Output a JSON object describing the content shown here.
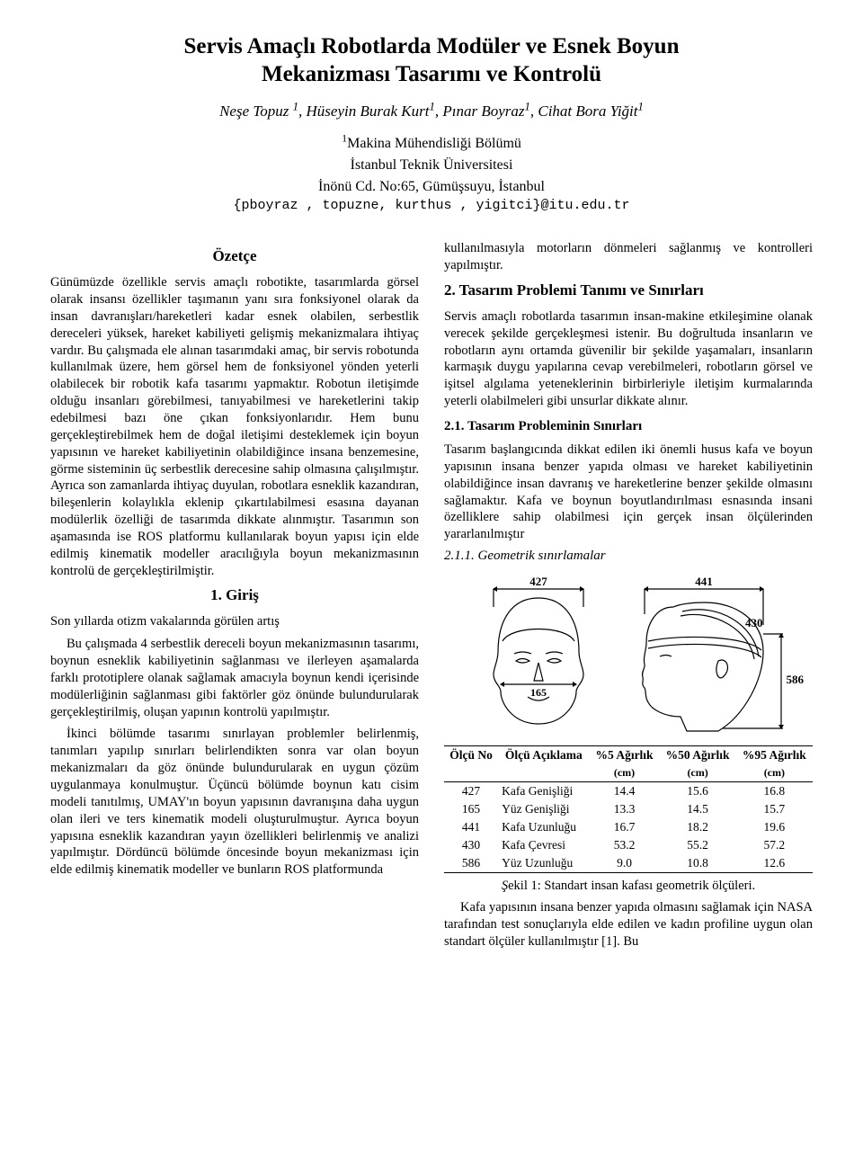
{
  "title_line1": "Servis Amaçlı Robotlarda Modüler ve Esnek Boyun",
  "title_line2": "Mekanizması Tasarımı ve Kontrolü",
  "authors_html": "Neşe Topuz <sup>1</sup>, Hüseyin Burak Kurt<sup>1</sup>, Pınar Boyraz<sup>1</sup>, Cihat Bora Yiğit<sup>1</sup>",
  "affil_line1_html": "<sup>1</sup>Makina Mühendisliği Bölümü",
  "affil_line2": "İstanbul Teknik Üniversitesi",
  "affil_line3": "İnönü Cd. No:65, Gümüşsuyu, İstanbul",
  "email": "{pboyraz , topuzne, kurthus , yigitci}@itu.edu.tr",
  "ozetce_head": "Özetçe",
  "ozetce_body": "Günümüzde özellikle servis amaçlı robotikte, tasarımlarda görsel olarak insansı özellikler taşımanın yanı sıra fonksiyonel olarak da insan davranışları/hareketleri kadar esnek olabilen, serbestlik dereceleri yüksek, hareket kabiliyeti gelişmiş mekanizmalara ihtiyaç vardır. Bu çalışmada ele alınan tasarımdaki amaç, bir servis robotunda kullanılmak üzere, hem görsel hem de fonksiyonel yönden yeterli olabilecek bir robotik kafa tasarımı yapmaktır. Robotun iletişimde olduğu insanları görebilmesi, tanıyabilmesi ve hareketlerini takip edebilmesi bazı öne çıkan fonksiyonlarıdır. Hem bunu gerçekleştirebilmek hem de doğal iletişimi desteklemek için boyun yapısının ve hareket kabiliyetinin olabildiğince insana benzemesine, görme sisteminin üç serbestlik derecesine sahip olmasına çalışılmıştır. Ayrıca son zamanlarda ihtiyaç duyulan, robotlara esneklik kazandıran, bileşenlerin kolaylıkla eklenip çıkartılabilmesi esasına dayanan modülerlik özelliği de tasarımda dikkate alınmıştır. Tasarımın son aşamasında ise ROS platformu kullanılarak boyun yapısı için elde edilmiş kinematik modeller aracılığıyla boyun mekanizmasının kontrolü de gerçekleştirilmiştir.",
  "giris_head": "1. Giriş",
  "giris_p0": "Son yıllarda otizm vakalarında görülen artış",
  "giris_p1": "Bu çalışmada 4 serbestlik dereceli boyun mekanizmasının tasarımı, boynun esneklik kabiliyetinin sağlanması ve ilerleyen aşamalarda farklı prototiplere olanak sağlamak amacıyla boynun kendi içerisinde modülerliğinin sağlanması gibi faktörler göz önünde bulundurularak gerçekleştirilmiş, oluşan yapının kontrolü yapılmıştır.",
  "giris_p2": "İkinci bölümde tasarımı sınırlayan problemler belirlenmiş, tanımları yapılıp sınırları belirlendikten sonra var olan boyun mekanizmaları da göz önünde bulundurularak en uygun çözüm uygulanmaya konulmuştur. Üçüncü bölümde boynun katı cisim modeli tanıtılmış, UMAY'ın boyun yapısının davranışına daha uygun olan ileri ve ters kinematik modeli oluşturulmuştur. Ayrıca boyun yapısına esneklik kazandıran yayın özellikleri belirlenmiş ve analizi yapılmıştır. Dördüncü bölümde öncesinde boyun mekanizması için elde edilmiş kinematik modeller ve bunların ROS platformunda",
  "col2_top": "kullanılmasıyla motorların dönmeleri sağlanmış ve kontrolleri yapılmıştır.",
  "s2_head": "2. Tasarım Problemi Tanımı ve Sınırları",
  "s2_body": "Servis amaçlı robotlarda tasarımın insan-makine etkileşimine olanak verecek şekilde gerçekleşmesi istenir. Bu doğrultuda insanların ve robotların aynı ortamda güvenilir bir şekilde yaşamaları, insanların karmaşık duygu yapılarına cevap verebilmeleri, robotların görsel ve işitsel algılama yeteneklerinin birbirleriyle iletişim kurmalarında yeterli olabilmeleri gibi unsurlar dikkate alınır.",
  "s21_head": "2.1. Tasarım Probleminin Sınırları",
  "s21_body": "Tasarım başlangıcında dikkat edilen iki önemli husus kafa ve boyun yapısının insana benzer yapıda olması ve hareket kabiliyetinin olabildiğince insan davranış ve hareketlerine benzer şekilde olmasını sağlamaktır. Kafa ve boynun boyutlandırılması esnasında insani özelliklere sahip olabilmesi için gerçek insan ölçülerinden yararlanılmıştır",
  "s211_head": "2.1.1. Geometrik sınırlamalar",
  "dim_labels": {
    "d427": "427",
    "d441": "441",
    "d430": "430",
    "d165": "165",
    "d586": "586"
  },
  "table": {
    "headers": [
      "Ölçü No",
      "Ölçü Açıklama",
      "%5 Ağırlık",
      "%50 Ağırlık",
      "%95 Ağırlık"
    ],
    "subheaders": [
      "",
      "",
      "(cm)",
      "(cm)",
      "(cm)"
    ],
    "rows": [
      [
        "427",
        "Kafa Genişliği",
        "14.4",
        "15.6",
        "16.8"
      ],
      [
        "165",
        "Yüz Genişliği",
        "13.3",
        "14.5",
        "15.7"
      ],
      [
        "441",
        "Kafa Uzunluğu",
        "16.7",
        "18.2",
        "19.6"
      ],
      [
        "430",
        "Kafa Çevresi",
        "53.2",
        "55.2",
        "57.2"
      ],
      [
        "586",
        "Yüz Uzunluğu",
        "9.0",
        "10.8",
        "12.6"
      ]
    ]
  },
  "fig1_html": "<i>Ş</i>ekil 1: Standart insan kafası geometrik ölçüleri.",
  "tail_para": "Kafa yapısının insana benzer yapıda olmasını sağlamak için NASA tarafından test sonuçlarıyla elde edilen ve kadın profiline uygun olan standart ölçüler kullanılmıştır [1]. Bu"
}
